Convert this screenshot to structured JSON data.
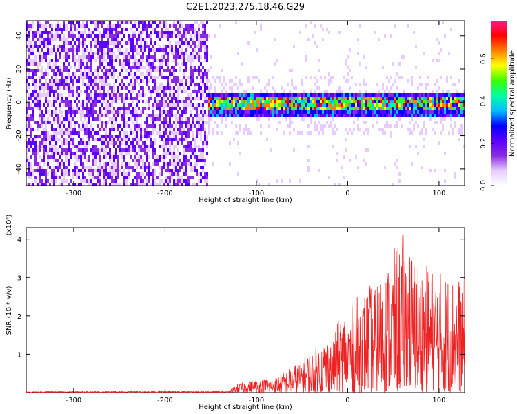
{
  "title": "C2E1.2023.275.18.46.G29",
  "colors": {
    "snr_line": "#ee2222",
    "colormap": [
      "#ffffff",
      "#e6ccff",
      "#8a2be2",
      "#5b00ff",
      "#0000ff",
      "#00bfff",
      "#00ffa0",
      "#3cff00",
      "#ffff00",
      "#ff7f00",
      "#ff0000",
      "#ff1a8c"
    ]
  },
  "chart_data": [
    {
      "type": "heatmap",
      "xlabel": "Height of straight line (km)",
      "ylabel": "Frequency (Hz)",
      "xlim": [
        -352,
        128
      ],
      "ylim": [
        -50,
        49
      ],
      "x_ticks": [
        -300,
        -200,
        -100,
        0,
        100
      ],
      "y_ticks": [
        -40,
        -20,
        0,
        20,
        40
      ],
      "description_bands": {
        "broadband_noise_x_range": [
          -352,
          -155
        ],
        "signal_x_range": [
          -155,
          128
        ],
        "signal_center_hz": 0,
        "signal_halfwidth_hz": 7
      },
      "colorbar": {
        "label": "Normalized spectral amplitude",
        "range": [
          0.0,
          0.78
        ],
        "ticks": [
          0.0,
          0.2,
          0.4,
          0.6
        ]
      }
    },
    {
      "type": "line",
      "xlabel": "Height of straight line (km)",
      "ylabel": "SNR (10 * v/v)",
      "y_multiplier": "(x10⁴)",
      "xlim": [
        -352,
        128
      ],
      "ylim": [
        0,
        4.3
      ],
      "x_ticks": [
        -300,
        -200,
        -100,
        0,
        100
      ],
      "y_ticks": [
        1,
        2,
        3,
        4
      ],
      "envelope": {
        "x": [
          -352,
          -130,
          -120,
          -100,
          -80,
          -60,
          -40,
          -20,
          0,
          20,
          40,
          60,
          80,
          100,
          128
        ],
        "y": [
          0.03,
          0.05,
          0.25,
          0.35,
          0.4,
          0.7,
          1.1,
          1.5,
          2.3,
          2.7,
          3.2,
          4.2,
          3.4,
          3.2,
          3.0
        ]
      },
      "series": [
        {
          "values_summary": "noisy SNR trace"
        }
      ]
    }
  ]
}
